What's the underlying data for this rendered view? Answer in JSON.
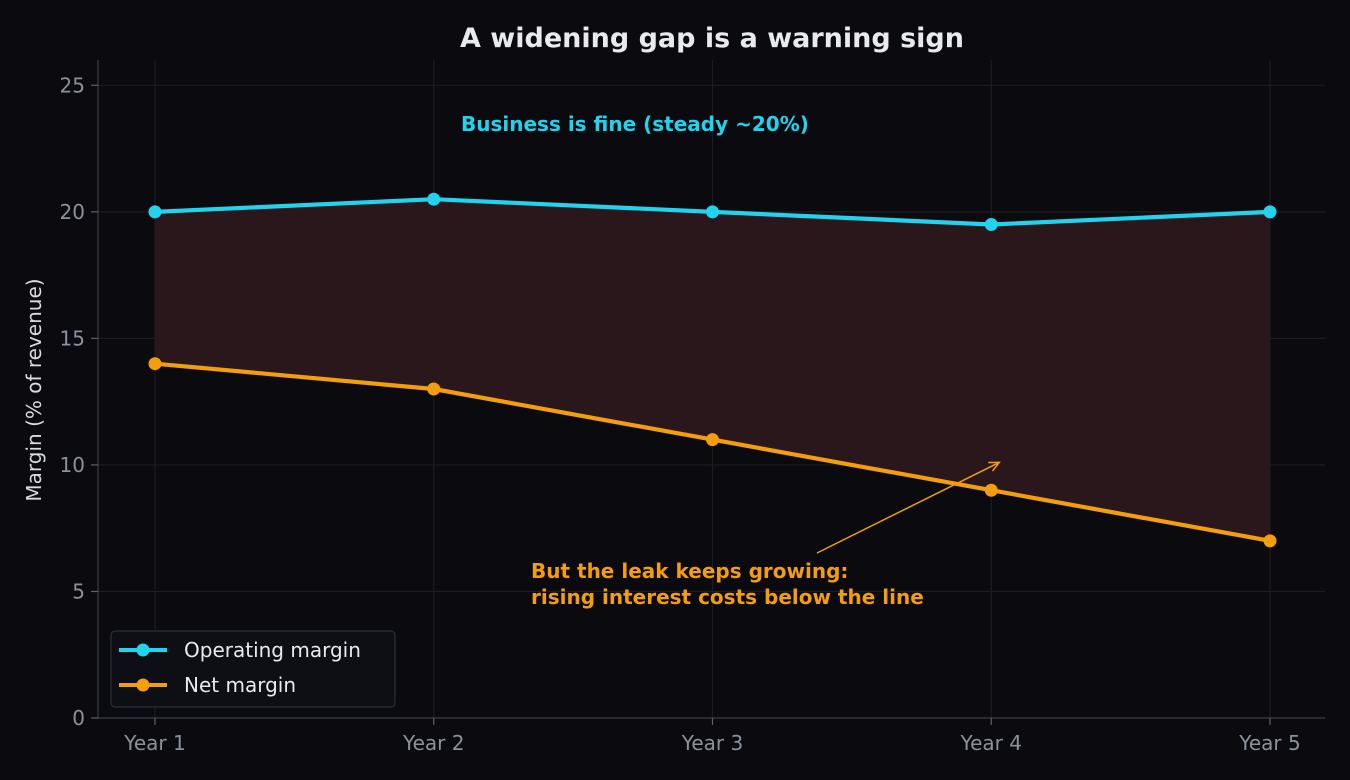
{
  "chart_data": {
    "type": "line",
    "title": "A widening gap is a warning sign",
    "xlabel": "",
    "ylabel": "Margin (% of revenue)",
    "categories": [
      "Year 1",
      "Year 2",
      "Year 3",
      "Year 4",
      "Year 5"
    ],
    "ylim": [
      0,
      26
    ],
    "yticks": [
      0,
      5,
      10,
      15,
      20,
      25
    ],
    "grid": true,
    "legend_placement": "lower-left",
    "series": [
      {
        "name": "Operating margin",
        "values": [
          20,
          20.5,
          20,
          19.5,
          20
        ],
        "color": "#22d3ee"
      },
      {
        "name": "Net margin",
        "values": [
          14,
          13,
          11,
          9,
          7
        ],
        "color": "#f59e0b"
      }
    ],
    "fill_between": {
      "color": "#2a171c"
    },
    "annotations": [
      {
        "lines": [
          "Business is fine (steady ~20%)"
        ],
        "color": "#22d3ee"
      },
      {
        "lines": [
          "But the leak keeps growing:",
          "rising interest costs below the line"
        ],
        "color": "#f59e0b",
        "arrow_to": {
          "x": "Year 4",
          "y": 10.1
        }
      }
    ]
  }
}
